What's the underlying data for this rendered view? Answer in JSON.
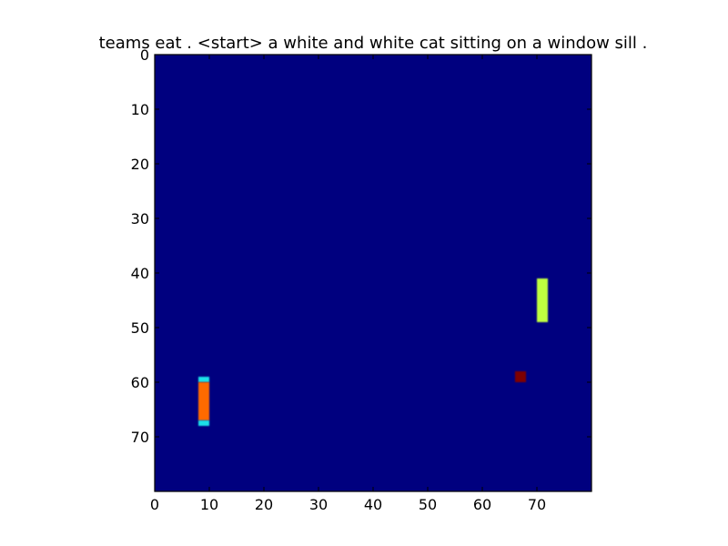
{
  "chart_data": {
    "type": "heatmap",
    "title": "teams eat . <start> a white and white cat sitting on a window sill .",
    "xlabel": "",
    "ylabel": "",
    "xlim": [
      0,
      80
    ],
    "ylim": [
      80,
      0
    ],
    "x_ticks": [
      0,
      10,
      20,
      30,
      40,
      50,
      60,
      70
    ],
    "y_ticks": [
      0,
      10,
      20,
      30,
      40,
      50,
      60,
      70
    ],
    "grid": false,
    "colormap": "jet",
    "background_value": 0.0,
    "background_color": "#00007f",
    "regions": [
      {
        "x0": 8,
        "x1": 10,
        "y0": 59,
        "y1": 60,
        "value": 0.4,
        "color": "#1fe0e8"
      },
      {
        "x0": 8,
        "x1": 10,
        "y0": 60,
        "y1": 67,
        "value": 0.83,
        "color": "#ff6a00"
      },
      {
        "x0": 8,
        "x1": 10,
        "y0": 67,
        "y1": 68,
        "value": 0.4,
        "color": "#1fe0e8"
      },
      {
        "x0": 70,
        "x1": 72,
        "y0": 41,
        "y1": 49,
        "value": 0.6,
        "color": "#bfff3f"
      },
      {
        "x0": 66,
        "x1": 68,
        "y0": 58,
        "y1": 60,
        "value": 1.0,
        "color": "#7f0000"
      }
    ]
  }
}
